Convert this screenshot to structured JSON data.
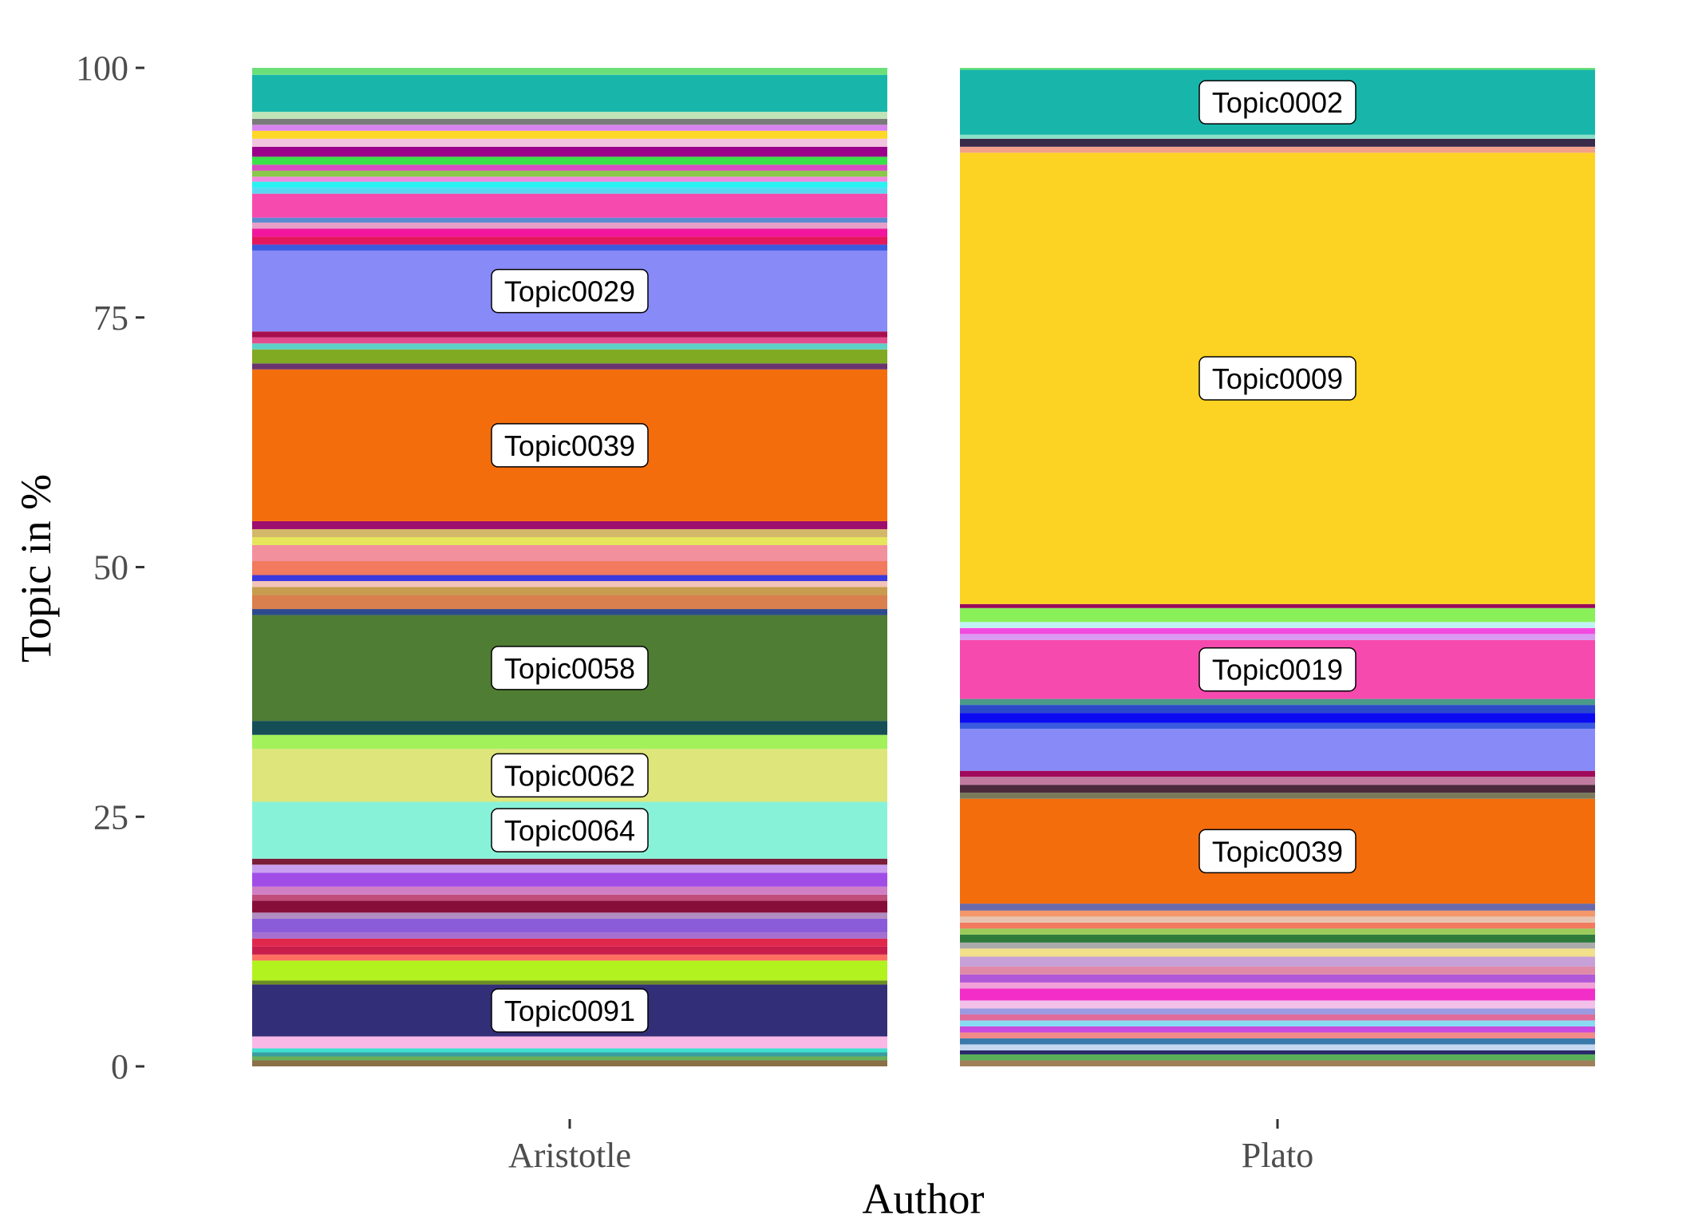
{
  "chart_data": {
    "type": "bar",
    "stacked": true,
    "xlabel": "Author",
    "ylabel": "Topic in %",
    "ylim": [
      0,
      100
    ],
    "yticks": [
      0,
      25,
      50,
      75,
      100
    ],
    "ytick_labels": [
      "0",
      "25",
      "50",
      "75",
      "100"
    ],
    "categories": [
      "Aristotle",
      "Plato"
    ],
    "grid": false,
    "legend": "none",
    "bars": [
      {
        "category": "Aristotle",
        "segments": [
          {
            "from": 0.0,
            "to": 0.6,
            "color": "#8B6F47"
          },
          {
            "from": 0.6,
            "to": 1.0,
            "color": "#6AAE5A"
          },
          {
            "from": 1.0,
            "to": 1.4,
            "color": "#3A9E9E"
          },
          {
            "from": 1.4,
            "to": 1.8,
            "color": "#40E0D0"
          },
          {
            "from": 1.8,
            "to": 3.0,
            "color": "#F9B8E6"
          },
          {
            "from": 3.0,
            "to": 8.2,
            "color": "#322E78",
            "label": "Topic0091"
          },
          {
            "from": 8.2,
            "to": 8.6,
            "color": "#6B8E23"
          },
          {
            "from": 8.6,
            "to": 10.6,
            "color": "#B2F21E"
          },
          {
            "from": 10.6,
            "to": 11.2,
            "color": "#FF6F61"
          },
          {
            "from": 11.2,
            "to": 12.0,
            "color": "#C71E4B"
          },
          {
            "from": 12.0,
            "to": 12.8,
            "color": "#E0284C"
          },
          {
            "from": 12.8,
            "to": 13.4,
            "color": "#A56FD0"
          },
          {
            "from": 13.4,
            "to": 14.8,
            "color": "#8A5CD9"
          },
          {
            "from": 14.8,
            "to": 15.4,
            "color": "#B08CC0"
          },
          {
            "from": 15.4,
            "to": 16.6,
            "color": "#880E3A"
          },
          {
            "from": 16.6,
            "to": 17.2,
            "color": "#C14D7A"
          },
          {
            "from": 17.2,
            "to": 18.0,
            "color": "#D07FC5"
          },
          {
            "from": 18.0,
            "to": 19.4,
            "color": "#A04DE8"
          },
          {
            "from": 19.4,
            "to": 20.2,
            "color": "#C9A0F0"
          },
          {
            "from": 20.2,
            "to": 20.8,
            "color": "#7A1E3A"
          },
          {
            "from": 20.8,
            "to": 26.5,
            "color": "#88F2D8",
            "label": "Topic0064"
          },
          {
            "from": 26.5,
            "to": 31.8,
            "color": "#DEE57A",
            "label": "Topic0062"
          },
          {
            "from": 31.8,
            "to": 33.2,
            "color": "#A2F05A"
          },
          {
            "from": 33.2,
            "to": 34.6,
            "color": "#154E56"
          },
          {
            "from": 34.6,
            "to": 45.2,
            "color": "#4F7D34",
            "label": "Topic0058"
          },
          {
            "from": 45.2,
            "to": 45.8,
            "color": "#2E4A8E"
          },
          {
            "from": 45.8,
            "to": 47.2,
            "color": "#D9804E"
          },
          {
            "from": 47.2,
            "to": 48.0,
            "color": "#C79C4E"
          },
          {
            "from": 48.0,
            "to": 48.6,
            "color": "#F2C4B8"
          },
          {
            "from": 48.6,
            "to": 49.2,
            "color": "#3A3ADE"
          },
          {
            "from": 49.2,
            "to": 50.6,
            "color": "#F27A5E"
          },
          {
            "from": 50.6,
            "to": 52.2,
            "color": "#F2909E"
          },
          {
            "from": 52.2,
            "to": 53.0,
            "color": "#E6E65A"
          },
          {
            "from": 53.0,
            "to": 53.8,
            "color": "#D4B86A"
          },
          {
            "from": 53.8,
            "to": 54.6,
            "color": "#9E0E6E"
          },
          {
            "from": 54.6,
            "to": 69.8,
            "color": "#F46D0D",
            "label": "Topic0039"
          },
          {
            "from": 69.8,
            "to": 70.4,
            "color": "#6A3470"
          },
          {
            "from": 70.4,
            "to": 71.8,
            "color": "#7FAA22"
          },
          {
            "from": 71.8,
            "to": 72.4,
            "color": "#5FD0C6"
          },
          {
            "from": 72.4,
            "to": 73.0,
            "color": "#E04E8E"
          },
          {
            "from": 73.0,
            "to": 73.6,
            "color": "#A80F4F"
          },
          {
            "from": 73.6,
            "to": 81.7,
            "color": "#888AF8",
            "label": "Topic0029"
          },
          {
            "from": 81.7,
            "to": 82.3,
            "color": "#3C5ADE"
          },
          {
            "from": 82.3,
            "to": 83.1,
            "color": "#E5185E"
          },
          {
            "from": 83.1,
            "to": 83.9,
            "color": "#F2169E"
          },
          {
            "from": 83.9,
            "to": 84.5,
            "color": "#E8A0C8"
          },
          {
            "from": 84.5,
            "to": 85.0,
            "color": "#5A8AD0"
          },
          {
            "from": 85.0,
            "to": 87.4,
            "color": "#F74AAE"
          },
          {
            "from": 87.4,
            "to": 88.0,
            "color": "#5AD8F2"
          },
          {
            "from": 88.0,
            "to": 88.6,
            "color": "#2AF2F2"
          },
          {
            "from": 88.6,
            "to": 89.1,
            "color": "#F08AE0"
          },
          {
            "from": 89.1,
            "to": 89.7,
            "color": "#8AC84A"
          },
          {
            "from": 89.7,
            "to": 90.3,
            "color": "#D84AC2"
          },
          {
            "from": 90.3,
            "to": 91.1,
            "color": "#3AE04A"
          },
          {
            "from": 91.1,
            "to": 92.1,
            "color": "#9A008A"
          },
          {
            "from": 92.1,
            "to": 92.9,
            "color": "#F2C4E0"
          },
          {
            "from": 92.9,
            "to": 93.7,
            "color": "#FDD827"
          },
          {
            "from": 93.7,
            "to": 94.3,
            "color": "#D884F0"
          },
          {
            "from": 94.3,
            "to": 94.9,
            "color": "#7A7A7A"
          },
          {
            "from": 94.9,
            "to": 95.6,
            "color": "#C0E4B8"
          },
          {
            "from": 95.6,
            "to": 99.3,
            "color": "#18B6AA"
          },
          {
            "from": 99.3,
            "to": 100.0,
            "color": "#6BE07A"
          }
        ]
      },
      {
        "category": "Plato",
        "segments": [
          {
            "from": 0.0,
            "to": 0.6,
            "color": "#A0805A"
          },
          {
            "from": 0.6,
            "to": 1.2,
            "color": "#5AAE5A"
          },
          {
            "from": 1.2,
            "to": 1.6,
            "color": "#2A2A6A"
          },
          {
            "from": 1.6,
            "to": 2.2,
            "color": "#C6D8F0"
          },
          {
            "from": 2.2,
            "to": 2.8,
            "color": "#3A7AAA"
          },
          {
            "from": 2.8,
            "to": 3.4,
            "color": "#F28A8A"
          },
          {
            "from": 3.4,
            "to": 4.0,
            "color": "#C84AE0"
          },
          {
            "from": 4.0,
            "to": 4.6,
            "color": "#8ADAF2"
          },
          {
            "from": 4.6,
            "to": 5.2,
            "color": "#E06A9A"
          },
          {
            "from": 5.2,
            "to": 5.8,
            "color": "#9A9AE0"
          },
          {
            "from": 5.8,
            "to": 6.6,
            "color": "#F2C0E8"
          },
          {
            "from": 6.6,
            "to": 7.8,
            "color": "#F22EC8"
          },
          {
            "from": 7.8,
            "to": 8.4,
            "color": "#F2A0D8"
          },
          {
            "from": 8.4,
            "to": 9.2,
            "color": "#B058D8"
          },
          {
            "from": 9.2,
            "to": 10.0,
            "color": "#E08AA8"
          },
          {
            "from": 10.0,
            "to": 11.0,
            "color": "#C8A0D8"
          },
          {
            "from": 11.0,
            "to": 11.8,
            "color": "#F2E08A"
          },
          {
            "from": 11.8,
            "to": 12.4,
            "color": "#AAAAAA"
          },
          {
            "from": 12.4,
            "to": 13.2,
            "color": "#2E7A3A"
          },
          {
            "from": 13.2,
            "to": 13.8,
            "color": "#9ACA5A"
          },
          {
            "from": 13.8,
            "to": 14.4,
            "color": "#F27A5E"
          },
          {
            "from": 14.4,
            "to": 15.0,
            "color": "#E8C4B0"
          },
          {
            "from": 15.0,
            "to": 15.6,
            "color": "#F2986A"
          },
          {
            "from": 15.6,
            "to": 16.3,
            "color": "#6A6AAA"
          },
          {
            "from": 16.3,
            "to": 26.8,
            "color": "#F46D0D",
            "label": "Topic0039"
          },
          {
            "from": 26.8,
            "to": 27.4,
            "color": "#7A7A5A"
          },
          {
            "from": 27.4,
            "to": 28.2,
            "color": "#4A2A3A"
          },
          {
            "from": 28.2,
            "to": 29.0,
            "color": "#C07AA0"
          },
          {
            "from": 29.0,
            "to": 29.6,
            "color": "#A00A5A"
          },
          {
            "from": 29.6,
            "to": 33.8,
            "color": "#888AF8"
          },
          {
            "from": 33.8,
            "to": 34.4,
            "color": "#3A5AE0"
          },
          {
            "from": 34.4,
            "to": 35.4,
            "color": "#0A0AF2"
          },
          {
            "from": 35.4,
            "to": 36.2,
            "color": "#2A4ACA"
          },
          {
            "from": 36.2,
            "to": 36.8,
            "color": "#4A9A8A"
          },
          {
            "from": 36.8,
            "to": 42.7,
            "color": "#F74AAE",
            "label": "Topic0019"
          },
          {
            "from": 42.7,
            "to": 43.3,
            "color": "#D89AF2"
          },
          {
            "from": 43.3,
            "to": 43.9,
            "color": "#F24AE0"
          },
          {
            "from": 43.9,
            "to": 44.5,
            "color": "#C0F2F2"
          },
          {
            "from": 44.5,
            "to": 45.9,
            "color": "#8AF05A"
          },
          {
            "from": 45.9,
            "to": 46.3,
            "color": "#9A0A5A"
          },
          {
            "from": 46.3,
            "to": 91.5,
            "color": "#FDD323",
            "label": "Topic0009"
          },
          {
            "from": 91.5,
            "to": 92.1,
            "color": "#F2A08A"
          },
          {
            "from": 92.1,
            "to": 92.9,
            "color": "#3A2A4A"
          },
          {
            "from": 92.9,
            "to": 93.3,
            "color": "#8AE0C8"
          },
          {
            "from": 93.3,
            "to": 99.8,
            "color": "#18B6AA",
            "label": "Topic0002"
          },
          {
            "from": 99.8,
            "to": 100.0,
            "color": "#6BE07A"
          }
        ]
      }
    ]
  }
}
